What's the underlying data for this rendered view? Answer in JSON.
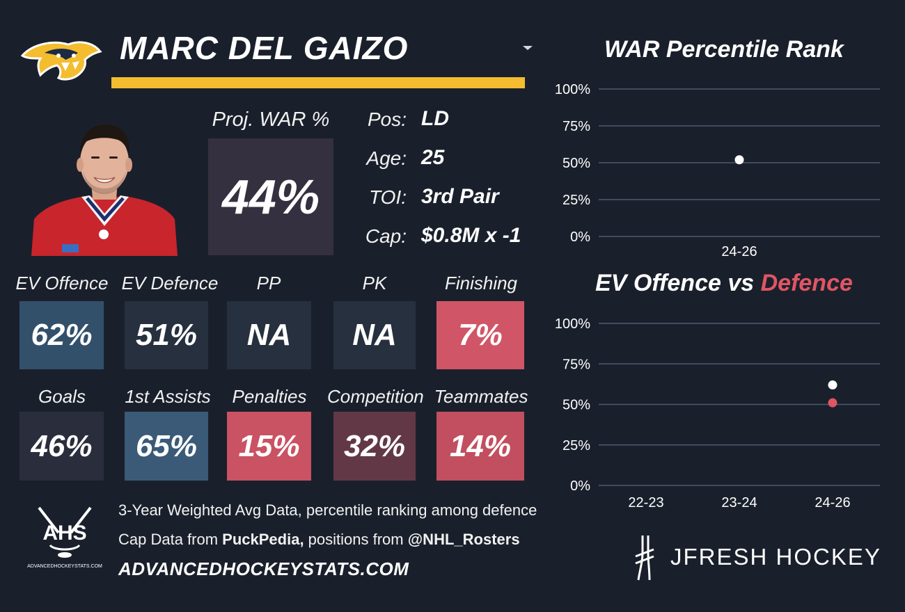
{
  "header": {
    "player_name": "MARC DEL GAIZO",
    "team_logo": "nashville-predators-logo",
    "accent_color": "#f4bd2f"
  },
  "proj_war": {
    "label": "Proj. WAR %",
    "value": "44%"
  },
  "info": [
    {
      "label": "Pos:",
      "value": "LD"
    },
    {
      "label": "Age:",
      "value": "25"
    },
    {
      "label": "TOI:",
      "value": "3rd Pair"
    },
    {
      "label": "Cap:",
      "value": "$0.8M x -1"
    }
  ],
  "tiles_row1": [
    {
      "label": "EV Offence",
      "value": "62%",
      "color": "#33506b"
    },
    {
      "label": "EV Defence",
      "value": "51%",
      "color": "#26303e"
    },
    {
      "label": "PP",
      "value": "NA",
      "color": "#26303e"
    },
    {
      "label": "PK",
      "value": "NA",
      "color": "#26303e"
    },
    {
      "label": "Finishing",
      "value": "7%",
      "color": "#d05667"
    }
  ],
  "tiles_row2": [
    {
      "label": "Goals",
      "value": "46%",
      "color": "#2a2d3b"
    },
    {
      "label": "1st Assists",
      "value": "65%",
      "color": "#3a5a78"
    },
    {
      "label": "Penalties",
      "value": "15%",
      "color": "#c95263"
    },
    {
      "label": "Competition",
      "value": "32%",
      "color": "#623847"
    },
    {
      "label": "Teammates",
      "value": "14%",
      "color": "#c14f60"
    }
  ],
  "footer": {
    "line1": "3-Year Weighted Avg Data, percentile ranking among defence",
    "line2_pre": "Cap Data from ",
    "line2_b1": "PuckPedia,",
    "line2_mid": " positions from ",
    "line2_b2": "@NHL_Rosters",
    "url": "ADVANCEDHOCKEYSTATS.COM",
    "ahs_logo_text": "AHS",
    "ahs_logo_subtext": "ADVANCEDHOCKEYSTATS.COM",
    "jfresh_text": "JFRESH HOCKEY"
  },
  "chart_data": [
    {
      "type": "scatter",
      "title": "WAR Percentile Rank",
      "categories": [
        "24-26"
      ],
      "series": [
        {
          "values": [
            52
          ],
          "color": "#ffffff"
        }
      ],
      "yticks": [
        "100%",
        "75%",
        "50%",
        "25%",
        "0%"
      ],
      "ylim": [
        0,
        100
      ],
      "grid": true
    },
    {
      "type": "scatter",
      "title": "EV Offence vs Defence",
      "title_part1": "EV Offence vs ",
      "title_part2": "Defence",
      "title_part2_color": "#e05565",
      "categories": [
        "22-23",
        "23-24",
        "24-26"
      ],
      "series": [
        {
          "values": [
            null,
            null,
            62
          ],
          "color": "#ffffff"
        },
        {
          "values": [
            null,
            null,
            51
          ],
          "color": "#e05565"
        }
      ],
      "yticks": [
        "100%",
        "75%",
        "50%",
        "25%",
        "0%"
      ],
      "ylim": [
        0,
        100
      ],
      "grid": true
    }
  ]
}
